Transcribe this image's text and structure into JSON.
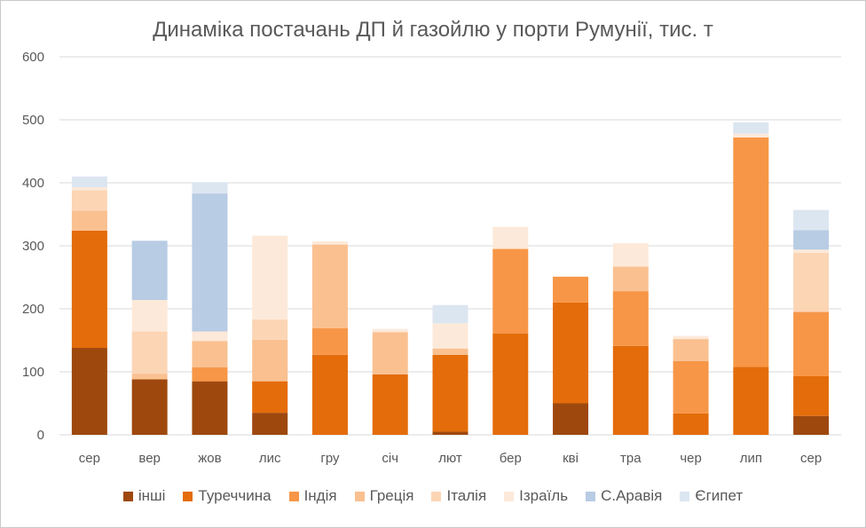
{
  "chart_data": {
    "type": "bar",
    "stacked": true,
    "title": "Динаміка постачань ДП й газойлю у порти Румунії, тис. т",
    "xlabel": "",
    "ylabel": "",
    "ylim": [
      0,
      600
    ],
    "yticks": [
      "0",
      "100",
      "200",
      "300",
      "400",
      "500",
      "600"
    ],
    "grid": true,
    "legend_position": "bottom",
    "categories": [
      "сер",
      "вер",
      "жов",
      "лис",
      "гру",
      "січ",
      "лют",
      "бер",
      "кві",
      "тра",
      "чер",
      "лип",
      "сер"
    ],
    "series": [
      {
        "name": "інші",
        "color": "#9e480e",
        "values": [
          138,
          88,
          85,
          35,
          0,
          0,
          5,
          0,
          50,
          0,
          0,
          0,
          30
        ]
      },
      {
        "name": "Туреччина",
        "color": "#e46c0a",
        "values": [
          186,
          0,
          0,
          50,
          127,
          96,
          122,
          161,
          160,
          141,
          34,
          108,
          63
        ]
      },
      {
        "name": "Індія",
        "color": "#f79646",
        "values": [
          0,
          0,
          22,
          0,
          42,
          0,
          0,
          134,
          41,
          87,
          83,
          364,
          102
        ]
      },
      {
        "name": "Греція",
        "color": "#fac090",
        "values": [
          32,
          9,
          42,
          66,
          133,
          67,
          10,
          0,
          0,
          39,
          35,
          0,
          0
        ]
      },
      {
        "name": "Італія",
        "color": "#fcd5b5",
        "values": [
          32,
          67,
          0,
          32,
          0,
          0,
          0,
          0,
          0,
          0,
          0,
          0,
          94
        ]
      },
      {
        "name": "Ізраїль",
        "color": "#fde9d9",
        "values": [
          5,
          50,
          15,
          133,
          5,
          5,
          40,
          35,
          0,
          37,
          5,
          6,
          5
        ]
      },
      {
        "name": "С.Аравія",
        "color": "#b8cce4",
        "values": [
          0,
          94,
          219,
          0,
          0,
          0,
          0,
          0,
          0,
          0,
          0,
          0,
          31
        ]
      },
      {
        "name": "Єгипет",
        "color": "#dce6f1",
        "values": [
          17,
          0,
          18,
          0,
          0,
          0,
          29,
          0,
          0,
          0,
          0,
          18,
          32
        ]
      }
    ]
  }
}
